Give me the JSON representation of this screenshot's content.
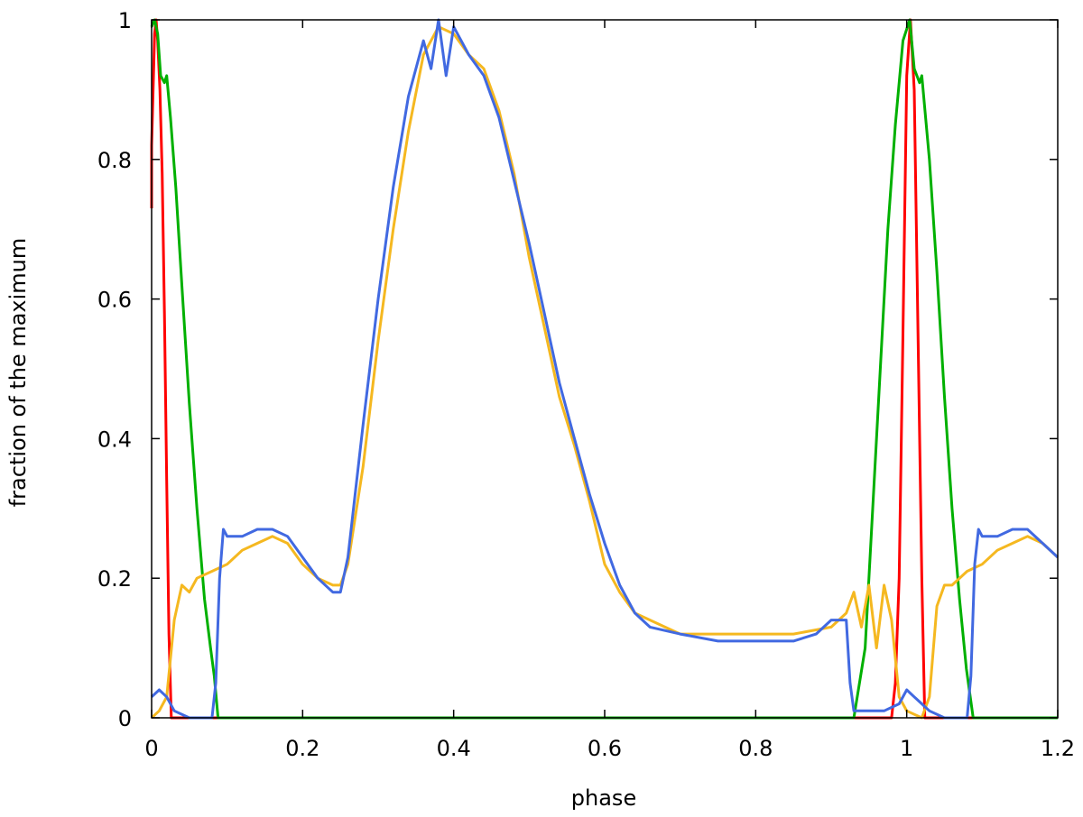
{
  "chart_data": {
    "type": "line",
    "title": "",
    "xlabel": "phase",
    "ylabel": "fraction of the maximum",
    "xlim": [
      0,
      1.2
    ],
    "ylim": [
      0,
      1
    ],
    "xticks": [
      0,
      0.2,
      0.4,
      0.6,
      0.8,
      1,
      1.2
    ],
    "xtick_labels": [
      "0",
      "0.2",
      "0.4",
      "0.6",
      "0.8",
      "1",
      "1.2"
    ],
    "yticks": [
      0,
      0.2,
      0.4,
      0.6,
      0.8,
      1
    ],
    "ytick_labels": [
      "0",
      "0.2",
      "0.4",
      "0.6",
      "0.8",
      "1"
    ],
    "grid": false,
    "legend": "none",
    "series": [
      {
        "color": "#ff0000",
        "points": [
          [
            0.0,
            0.73
          ],
          [
            0.0,
            0.82
          ],
          [
            0.004,
            0.98
          ],
          [
            0.006,
            1.0
          ],
          [
            0.008,
            0.97
          ],
          [
            0.011,
            0.9
          ],
          [
            0.014,
            0.78
          ],
          [
            0.017,
            0.58
          ],
          [
            0.02,
            0.34
          ],
          [
            0.023,
            0.12
          ],
          [
            0.026,
            0.0
          ],
          [
            0.98,
            0.0
          ],
          [
            0.985,
            0.05
          ],
          [
            0.99,
            0.2
          ],
          [
            0.995,
            0.55
          ],
          [
            1.0,
            0.92
          ],
          [
            1.005,
            1.0
          ],
          [
            1.01,
            0.9
          ],
          [
            1.015,
            0.55
          ],
          [
            1.02,
            0.2
          ],
          [
            1.024,
            0.0
          ],
          [
            1.2,
            0.0
          ]
        ]
      },
      {
        "color": "#00b000",
        "points": [
          [
            0.0,
            0.99
          ],
          [
            0.004,
            1.0
          ],
          [
            0.008,
            0.98
          ],
          [
            0.012,
            0.92
          ],
          [
            0.017,
            0.91
          ],
          [
            0.02,
            0.92
          ],
          [
            0.025,
            0.86
          ],
          [
            0.032,
            0.76
          ],
          [
            0.04,
            0.62
          ],
          [
            0.05,
            0.45
          ],
          [
            0.06,
            0.3
          ],
          [
            0.07,
            0.17
          ],
          [
            0.078,
            0.1
          ],
          [
            0.083,
            0.06
          ],
          [
            0.088,
            0.0
          ],
          [
            0.93,
            0.0
          ],
          [
            0.945,
            0.1
          ],
          [
            0.955,
            0.3
          ],
          [
            0.965,
            0.5
          ],
          [
            0.975,
            0.7
          ],
          [
            0.985,
            0.85
          ],
          [
            0.995,
            0.97
          ],
          [
            1.004,
            1.0
          ],
          [
            1.01,
            0.93
          ],
          [
            1.017,
            0.91
          ],
          [
            1.02,
            0.92
          ],
          [
            1.03,
            0.8
          ],
          [
            1.04,
            0.64
          ],
          [
            1.05,
            0.46
          ],
          [
            1.06,
            0.3
          ],
          [
            1.07,
            0.17
          ],
          [
            1.079,
            0.07
          ],
          [
            1.088,
            0.0
          ],
          [
            1.2,
            0.0
          ]
        ]
      },
      {
        "color": "#f5b820",
        "points": [
          [
            0.0,
            0.0
          ],
          [
            0.01,
            0.01
          ],
          [
            0.02,
            0.03
          ],
          [
            0.03,
            0.14
          ],
          [
            0.04,
            0.19
          ],
          [
            0.05,
            0.18
          ],
          [
            0.06,
            0.2
          ],
          [
            0.08,
            0.21
          ],
          [
            0.1,
            0.22
          ],
          [
            0.12,
            0.24
          ],
          [
            0.14,
            0.25
          ],
          [
            0.16,
            0.26
          ],
          [
            0.18,
            0.25
          ],
          [
            0.2,
            0.22
          ],
          [
            0.22,
            0.2
          ],
          [
            0.24,
            0.19
          ],
          [
            0.25,
            0.19
          ],
          [
            0.26,
            0.22
          ],
          [
            0.28,
            0.36
          ],
          [
            0.3,
            0.54
          ],
          [
            0.32,
            0.7
          ],
          [
            0.34,
            0.84
          ],
          [
            0.36,
            0.95
          ],
          [
            0.38,
            0.99
          ],
          [
            0.4,
            0.98
          ],
          [
            0.42,
            0.95
          ],
          [
            0.44,
            0.93
          ],
          [
            0.46,
            0.87
          ],
          [
            0.48,
            0.78
          ],
          [
            0.5,
            0.66
          ],
          [
            0.52,
            0.56
          ],
          [
            0.54,
            0.46
          ],
          [
            0.56,
            0.39
          ],
          [
            0.58,
            0.31
          ],
          [
            0.6,
            0.22
          ],
          [
            0.62,
            0.18
          ],
          [
            0.64,
            0.15
          ],
          [
            0.66,
            0.14
          ],
          [
            0.7,
            0.12
          ],
          [
            0.75,
            0.12
          ],
          [
            0.8,
            0.12
          ],
          [
            0.85,
            0.12
          ],
          [
            0.9,
            0.13
          ],
          [
            0.92,
            0.15
          ],
          [
            0.93,
            0.18
          ],
          [
            0.94,
            0.13
          ],
          [
            0.95,
            0.19
          ],
          [
            0.96,
            0.1
          ],
          [
            0.97,
            0.19
          ],
          [
            0.98,
            0.14
          ],
          [
            0.99,
            0.03
          ],
          [
            1.0,
            0.01
          ],
          [
            1.02,
            0.0
          ],
          [
            1.03,
            0.03
          ],
          [
            1.04,
            0.16
          ],
          [
            1.05,
            0.19
          ],
          [
            1.06,
            0.19
          ],
          [
            1.08,
            0.21
          ],
          [
            1.1,
            0.22
          ],
          [
            1.12,
            0.24
          ],
          [
            1.14,
            0.25
          ],
          [
            1.16,
            0.26
          ],
          [
            1.18,
            0.25
          ],
          [
            1.2,
            0.23
          ]
        ]
      },
      {
        "color": "#4169e1",
        "points": [
          [
            0.0,
            0.03
          ],
          [
            0.01,
            0.04
          ],
          [
            0.02,
            0.03
          ],
          [
            0.03,
            0.01
          ],
          [
            0.05,
            0.0
          ],
          [
            0.08,
            0.0
          ],
          [
            0.085,
            0.05
          ],
          [
            0.09,
            0.2
          ],
          [
            0.095,
            0.27
          ],
          [
            0.1,
            0.26
          ],
          [
            0.12,
            0.26
          ],
          [
            0.14,
            0.27
          ],
          [
            0.16,
            0.27
          ],
          [
            0.18,
            0.26
          ],
          [
            0.2,
            0.23
          ],
          [
            0.22,
            0.2
          ],
          [
            0.24,
            0.18
          ],
          [
            0.25,
            0.18
          ],
          [
            0.26,
            0.23
          ],
          [
            0.28,
            0.42
          ],
          [
            0.3,
            0.6
          ],
          [
            0.32,
            0.76
          ],
          [
            0.34,
            0.89
          ],
          [
            0.36,
            0.97
          ],
          [
            0.37,
            0.93
          ],
          [
            0.38,
            1.0
          ],
          [
            0.39,
            0.92
          ],
          [
            0.4,
            0.99
          ],
          [
            0.42,
            0.95
          ],
          [
            0.44,
            0.92
          ],
          [
            0.46,
            0.86
          ],
          [
            0.48,
            0.77
          ],
          [
            0.5,
            0.68
          ],
          [
            0.52,
            0.58
          ],
          [
            0.54,
            0.48
          ],
          [
            0.56,
            0.4
          ],
          [
            0.58,
            0.32
          ],
          [
            0.6,
            0.25
          ],
          [
            0.62,
            0.19
          ],
          [
            0.64,
            0.15
          ],
          [
            0.66,
            0.13
          ],
          [
            0.7,
            0.12
          ],
          [
            0.75,
            0.11
          ],
          [
            0.8,
            0.11
          ],
          [
            0.85,
            0.11
          ],
          [
            0.88,
            0.12
          ],
          [
            0.9,
            0.14
          ],
          [
            0.92,
            0.14
          ],
          [
            0.925,
            0.05
          ],
          [
            0.93,
            0.01
          ],
          [
            0.95,
            0.01
          ],
          [
            0.97,
            0.01
          ],
          [
            0.99,
            0.02
          ],
          [
            1.0,
            0.04
          ],
          [
            1.01,
            0.03
          ],
          [
            1.02,
            0.02
          ],
          [
            1.03,
            0.01
          ],
          [
            1.05,
            0.0
          ],
          [
            1.08,
            0.0
          ],
          [
            1.085,
            0.06
          ],
          [
            1.09,
            0.22
          ],
          [
            1.095,
            0.27
          ],
          [
            1.1,
            0.26
          ],
          [
            1.12,
            0.26
          ],
          [
            1.14,
            0.27
          ],
          [
            1.16,
            0.27
          ],
          [
            1.18,
            0.25
          ],
          [
            1.2,
            0.23
          ]
        ]
      }
    ]
  }
}
